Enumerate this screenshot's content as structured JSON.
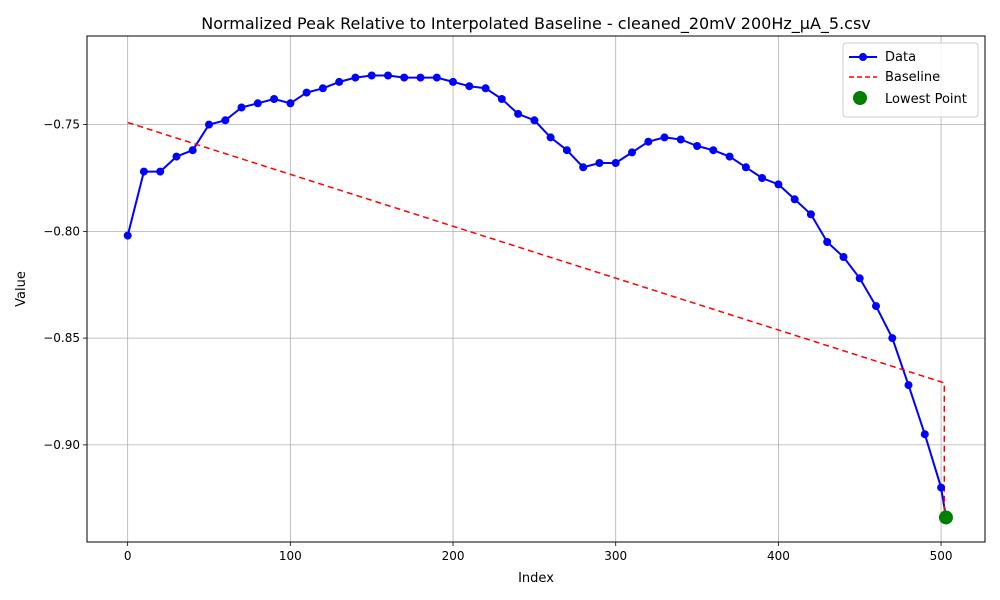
{
  "chart_data": {
    "type": "line",
    "title": "Normalized Peak Relative to Interpolated Baseline - cleaned_20mV 200Hz_µA_5.csv",
    "xlabel": "Index",
    "ylabel": "Value",
    "xlim": [
      -25,
      527
    ],
    "ylim": [
      -0.9455,
      -0.7085
    ],
    "x_ticks": [
      0,
      100,
      200,
      300,
      400,
      500
    ],
    "x_tick_labels": [
      "0",
      "100",
      "200",
      "300",
      "400",
      "500"
    ],
    "y_ticks": [
      -0.9,
      -0.85,
      -0.8,
      -0.75
    ],
    "y_tick_labels": [
      "−0.90",
      "−0.85",
      "−0.80",
      "−0.75"
    ],
    "grid": true,
    "legend_position": "top-right",
    "colors": {
      "data": "#0000ff",
      "baseline": "#ff0000",
      "lowest": "#008000"
    },
    "series": [
      {
        "name": "Data",
        "style": "line-with-markers",
        "x": [
          0,
          10,
          20,
          30,
          40,
          50,
          60,
          70,
          80,
          90,
          100,
          110,
          120,
          130,
          140,
          150,
          160,
          170,
          180,
          190,
          200,
          210,
          220,
          230,
          240,
          250,
          260,
          270,
          280,
          290,
          300,
          310,
          320,
          330,
          340,
          350,
          360,
          370,
          380,
          390,
          400,
          410,
          420,
          430,
          440,
          450,
          460,
          470,
          480,
          490,
          500,
          503
        ],
        "y": [
          -0.802,
          -0.772,
          -0.772,
          -0.765,
          -0.762,
          -0.75,
          -0.748,
          -0.742,
          -0.74,
          -0.738,
          -0.74,
          -0.735,
          -0.733,
          -0.73,
          -0.728,
          -0.727,
          -0.727,
          -0.728,
          -0.728,
          -0.728,
          -0.73,
          -0.732,
          -0.733,
          -0.738,
          -0.745,
          -0.748,
          -0.756,
          -0.762,
          -0.77,
          -0.768,
          -0.768,
          -0.763,
          -0.758,
          -0.756,
          -0.757,
          -0.76,
          -0.762,
          -0.765,
          -0.77,
          -0.775,
          -0.778,
          -0.785,
          -0.792,
          -0.805,
          -0.812,
          -0.822,
          -0.835,
          -0.85,
          -0.872,
          -0.895,
          -0.92,
          -0.934
        ]
      },
      {
        "name": "Baseline",
        "style": "dashed",
        "x": [
          0,
          502,
          502
        ],
        "y": [
          -0.749,
          -0.871,
          -0.934
        ]
      }
    ],
    "lowest_point": {
      "name": "Lowest Point",
      "x": 503,
      "y": -0.934
    }
  }
}
